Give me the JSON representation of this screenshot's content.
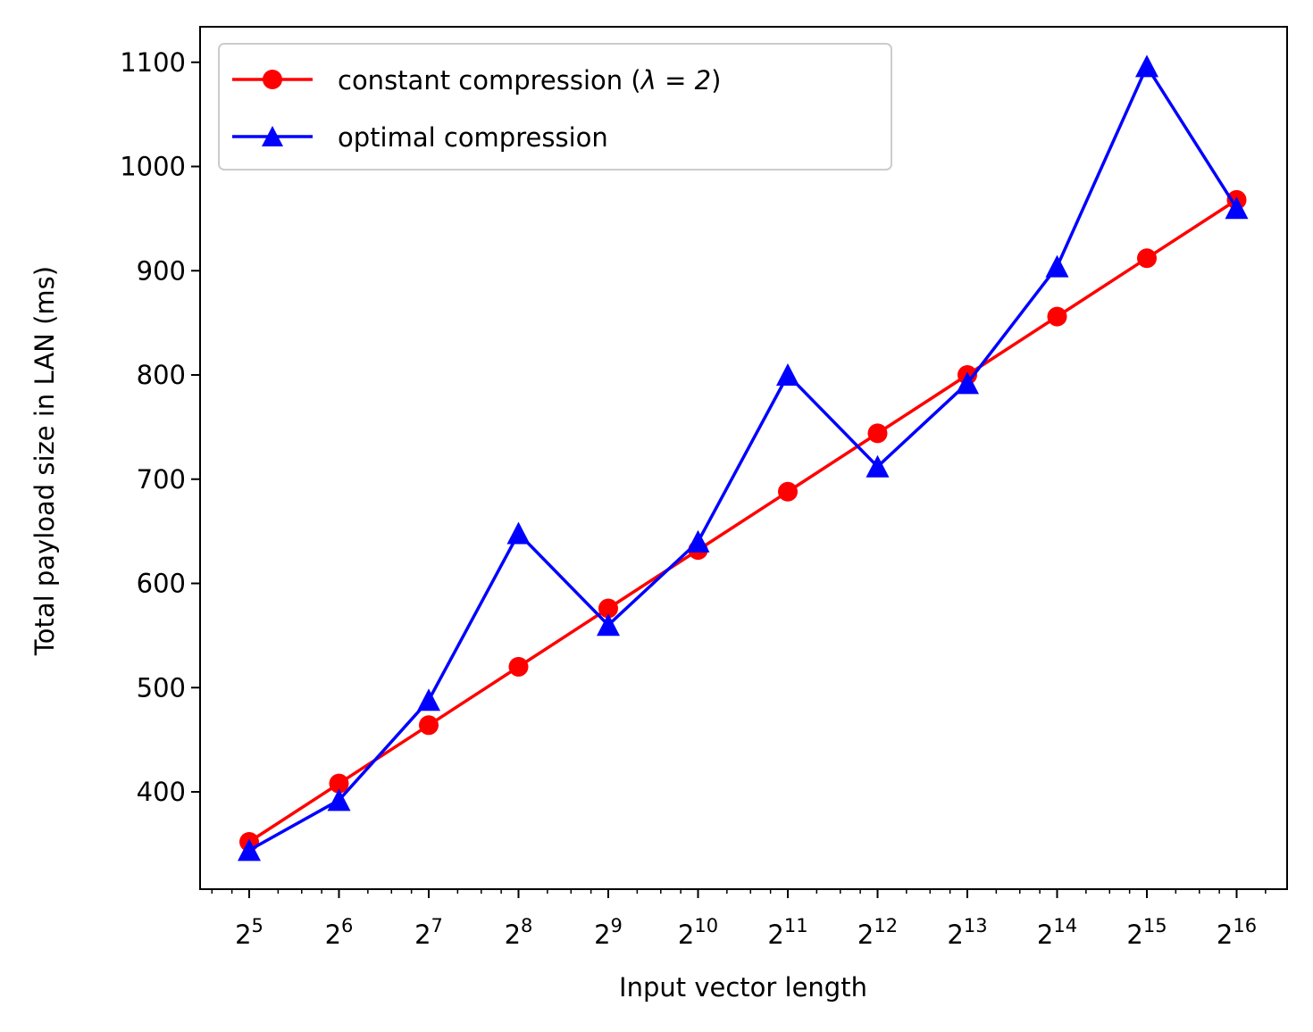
{
  "chart_data": {
    "type": "line",
    "title": "",
    "xlabel": "Input vector length",
    "ylabel": "Total payload size in LAN (ms)",
    "x_scale": "log2",
    "x": [
      32,
      64,
      128,
      256,
      512,
      1024,
      2048,
      4096,
      8192,
      16384,
      32768,
      65536
    ],
    "x_tick_base": "2",
    "x_tick_exponents": [
      "5",
      "6",
      "7",
      "8",
      "9",
      "10",
      "11",
      "12",
      "13",
      "14",
      "15",
      "16"
    ],
    "ylim": [
      305,
      1135
    ],
    "y_ticks": [
      400,
      500,
      600,
      700,
      800,
      900,
      1000,
      1100
    ],
    "grid": false,
    "legend_position": "top-left",
    "series": [
      {
        "name_prefix": "constant compression (",
        "name_math": "λ = 2",
        "name_suffix": ")",
        "color": "#ff0000",
        "marker": "circle",
        "values": [
          352,
          408,
          464,
          520,
          576,
          632,
          688,
          744,
          800,
          856,
          912,
          968
        ]
      },
      {
        "name": "optimal compression",
        "color": "#0000ff",
        "marker": "triangle",
        "values": [
          344,
          392,
          488,
          648,
          560,
          640,
          800,
          712,
          792,
          904,
          1096,
          960
        ]
      }
    ]
  }
}
